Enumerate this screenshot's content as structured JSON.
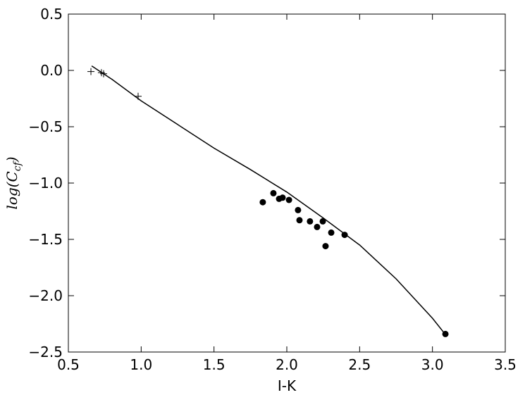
{
  "chart_data": {
    "type": "scatter",
    "xlabel": "I-K",
    "ylabel": {
      "main": "log(C",
      "sub": "cf",
      "end": ")"
    },
    "xlim": [
      0.5,
      3.5
    ],
    "ylim": [
      -2.5,
      0.5
    ],
    "xticks": [
      0.5,
      {
        "value": 1.0,
        "label": "1.0"
      },
      1.5,
      {
        "value": 2.0,
        "label": "2.0"
      },
      2.5,
      {
        "value": 3.0,
        "label": "3.0"
      },
      3.5
    ],
    "yticks": [
      {
        "value": -2.5,
        "label": "−2.5"
      },
      {
        "value": -2.0,
        "label": "−2.0"
      },
      {
        "value": -1.5,
        "label": "−1.5"
      },
      {
        "value": -1.0,
        "label": "−1.0"
      },
      {
        "value": -0.5,
        "label": "−0.5"
      },
      {
        "value": 0.0,
        "label": "0.0"
      },
      0.5
    ],
    "series": [
      {
        "marker": "+",
        "color": "#000000",
        "x": [
          0.655,
          0.727,
          0.742,
          0.979
        ],
        "values": [
          -0.01,
          -0.02,
          -0.03,
          -0.23
        ]
      },
      {
        "marker": "o",
        "color": "#000000",
        "x": [
          1.835,
          1.908,
          1.947,
          1.971,
          2.015,
          2.077,
          2.087,
          2.159,
          2.208,
          2.247,
          2.266,
          2.305,
          2.397,
          3.089
        ],
        "values": [
          -1.17,
          -1.09,
          -1.14,
          -1.13,
          -1.15,
          -1.24,
          -1.33,
          -1.34,
          -1.39,
          -1.34,
          -1.56,
          -1.44,
          -1.46,
          -2.34
        ]
      },
      {
        "marker": "line",
        "color": "#000000",
        "x": [
          0.66,
          0.8,
          1.0,
          1.25,
          1.5,
          1.75,
          2.0,
          2.25,
          2.5,
          2.75,
          3.0,
          3.08
        ],
        "values": [
          0.04,
          -0.08,
          -0.27,
          -0.48,
          -0.69,
          -0.88,
          -1.08,
          -1.31,
          -1.55,
          -1.85,
          -2.2,
          -2.33
        ]
      }
    ]
  }
}
